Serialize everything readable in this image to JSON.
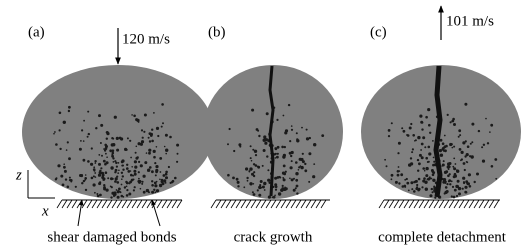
{
  "panels": [
    {
      "label": "(a)",
      "velocity": "120 m/s",
      "caption": "shear damaged bonds"
    },
    {
      "label": "(b)",
      "caption": "crack growth"
    },
    {
      "label": "(c)",
      "velocity": "101 m/s",
      "caption": "complete detachment"
    }
  ],
  "axes": {
    "z": "z",
    "x": "x"
  }
}
